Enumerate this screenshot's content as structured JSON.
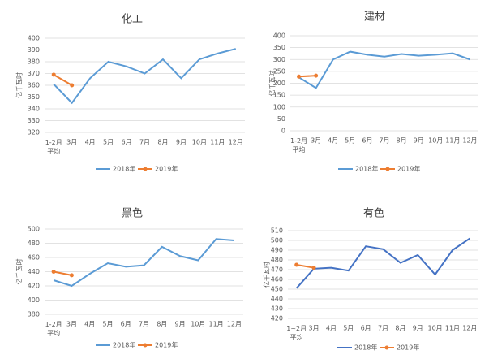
{
  "chart_data": [
    {
      "type": "line",
      "title": "化工",
      "ylabel": "亿千瓦时",
      "categories": [
        "1-2月\n平均",
        "3月",
        "4月",
        "5月",
        "6月",
        "7月",
        "8月",
        "9月",
        "10月",
        "11月",
        "12月"
      ],
      "series": [
        {
          "name": "2018年",
          "color": "#5b9bd5",
          "values": [
            361,
            345,
            366,
            380,
            376,
            370,
            382,
            366,
            382,
            387,
            391
          ]
        },
        {
          "name": "2019年",
          "color": "#ed7d31",
          "values": [
            369,
            360,
            null,
            null,
            null,
            null,
            null,
            null,
            null,
            null,
            null
          ]
        }
      ],
      "ylim": [
        320,
        400
      ],
      "yticks": [
        320,
        330,
        340,
        350,
        360,
        370,
        380,
        390,
        400
      ],
      "grid": true,
      "legend": "bottom"
    },
    {
      "type": "line",
      "title": "建材",
      "ylabel": "亿千瓦时",
      "categories": [
        "1-2月\n平均",
        "3月",
        "4月",
        "5月",
        "6月",
        "7月",
        "8月",
        "9月",
        "10月",
        "11月",
        "12月"
      ],
      "series": [
        {
          "name": "2018年",
          "color": "#5b9bd5",
          "values": [
            225,
            180,
            300,
            333,
            320,
            312,
            323,
            316,
            320,
            326,
            300
          ]
        },
        {
          "name": "2019年",
          "color": "#ed7d31",
          "values": [
            228,
            232,
            null,
            null,
            null,
            null,
            null,
            null,
            null,
            null,
            null
          ]
        }
      ],
      "ylim": [
        0,
        400
      ],
      "yticks": [
        0,
        50,
        100,
        150,
        200,
        250,
        300,
        350,
        400
      ],
      "grid": true,
      "legend": "bottom"
    },
    {
      "type": "line",
      "title": "黑色",
      "ylabel": "亿千瓦时",
      "categories": [
        "1-2月\n平均",
        "3月",
        "4月",
        "5月",
        "6月",
        "7月",
        "8月",
        "9月",
        "10月",
        "11月",
        "12月"
      ],
      "series": [
        {
          "name": "2018年",
          "color": "#5b9bd5",
          "values": [
            428,
            420,
            437,
            452,
            447,
            449,
            475,
            462,
            456,
            486,
            484
          ]
        },
        {
          "name": "2019年",
          "color": "#ed7d31",
          "values": [
            440,
            435,
            null,
            null,
            null,
            null,
            null,
            null,
            null,
            null,
            null
          ]
        }
      ],
      "ylim": [
        380,
        500
      ],
      "yticks": [
        380,
        400,
        420,
        440,
        460,
        480,
        500
      ],
      "grid": true,
      "legend": "bottom"
    },
    {
      "type": "line",
      "title": "有色",
      "ylabel": "亿千瓦时",
      "categories": [
        "1~2月\n平均",
        "3月",
        "4月",
        "5月",
        "6月",
        "7月",
        "8月",
        "9月",
        "10月",
        "11月",
        "12月"
      ],
      "series": [
        {
          "name": "2018年",
          "color": "#4472c4",
          "values": [
            451,
            471,
            472,
            469,
            494,
            491,
            477,
            485,
            465,
            490,
            502
          ]
        },
        {
          "name": "2019年",
          "color": "#ed7d31",
          "values": [
            475,
            472,
            null,
            null,
            null,
            null,
            null,
            null,
            null,
            null,
            null
          ]
        }
      ],
      "ylim": [
        420,
        510
      ],
      "yticks": [
        420,
        430,
        440,
        450,
        460,
        470,
        480,
        490,
        500,
        510
      ],
      "grid": true,
      "legend": "bottom"
    }
  ]
}
